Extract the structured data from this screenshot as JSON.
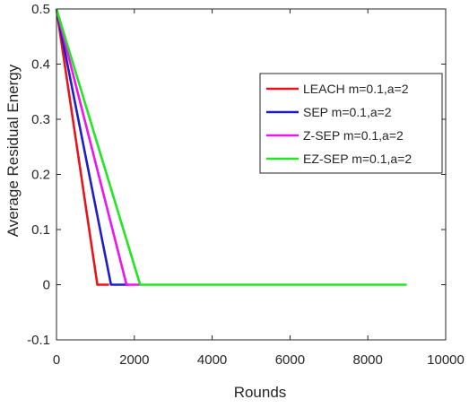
{
  "chart_data": {
    "type": "line",
    "title": "",
    "xlabel": "Rounds",
    "ylabel": "Average Residual Energy",
    "xlim": [
      0,
      10000
    ],
    "ylim": [
      -0.1,
      0.5
    ],
    "xticks": [
      0,
      2000,
      4000,
      6000,
      8000,
      10000
    ],
    "yticks": [
      -0.1,
      0,
      0.1,
      0.2,
      0.3,
      0.4,
      0.5
    ],
    "xtick_labels": [
      "0",
      "2000",
      "4000",
      "6000",
      "8000",
      "10000"
    ],
    "ytick_labels": [
      "-0.1",
      "0",
      "0.1",
      "0.2",
      "0.3",
      "0.4",
      "0.5"
    ],
    "grid": false,
    "legend_position": "upper-right",
    "series": [
      {
        "name": "LEACH  m=0.1,a=2",
        "color": "#e8141c",
        "x": [
          0,
          1050,
          1350
        ],
        "y": [
          0.5,
          0,
          0
        ]
      },
      {
        "name": "SEP  m=0.1,a=2",
        "color": "#1e1ec8",
        "x": [
          0,
          1400,
          1850
        ],
        "y": [
          0.5,
          0,
          0
        ]
      },
      {
        "name": "Z-SEP  m=0.1,a=2",
        "color": "#ee14ee",
        "x": [
          0,
          1800,
          2150
        ],
        "y": [
          0.5,
          0,
          0
        ]
      },
      {
        "name": "EZ-SEP  m=0.1,a=2",
        "color": "#22e622",
        "x": [
          0,
          2150,
          9000
        ],
        "y": [
          0.5,
          0,
          0
        ]
      }
    ]
  }
}
